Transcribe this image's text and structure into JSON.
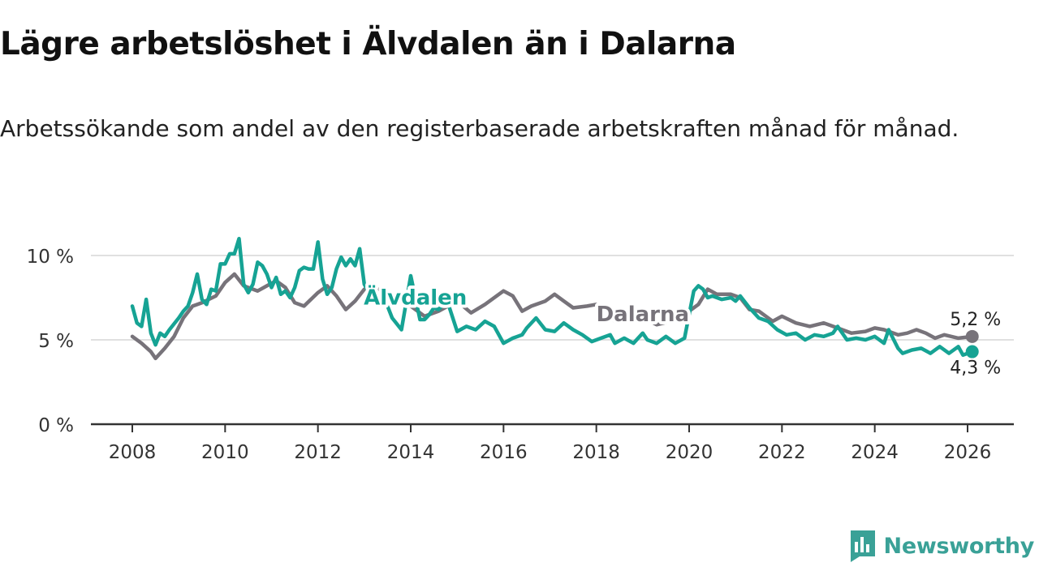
{
  "header": {
    "title": "Lägre arbetslöshet i Älvdalen än i Dalarna",
    "subtitle": "Arbetssökande som andel av den registerbaserade arbetskraften månad för månad."
  },
  "brand": {
    "name": "Newsworthy",
    "icon": "bar-chart-flag-icon",
    "color": "#3aa197"
  },
  "chart_data": {
    "type": "line",
    "title": "Lägre arbetslöshet i Älvdalen än i Dalarna",
    "xlabel": "",
    "ylabel": "",
    "xlim": [
      2007.6,
      2027.0
    ],
    "ylim": [
      0,
      10
    ],
    "x_ticks": [
      2008,
      2010,
      2012,
      2014,
      2016,
      2018,
      2020,
      2022,
      2024,
      2026
    ],
    "x_tick_labels": [
      "2008",
      "2010",
      "2012",
      "2014",
      "2016",
      "2018",
      "2020",
      "2022",
      "2024",
      "2026"
    ],
    "y_ticks": [
      0,
      5,
      10
    ],
    "y_tick_labels": [
      "0 %",
      "5 %",
      "10 %"
    ],
    "grid": "horizontal",
    "series": [
      {
        "name": "Dalarna",
        "label": "Dalarna",
        "color": "#77737a",
        "end_label": "5,2 %",
        "x": [
          2008.0,
          2008.2,
          2008.4,
          2008.5,
          2008.7,
          2008.9,
          2009.1,
          2009.3,
          2009.5,
          2009.8,
          2010.0,
          2010.2,
          2010.4,
          2010.7,
          2010.9,
          2011.1,
          2011.3,
          2011.5,
          2011.7,
          2012.0,
          2012.2,
          2012.4,
          2012.6,
          2012.8,
          2013.0,
          2013.3,
          2013.6,
          2014.0,
          2014.3,
          2014.6,
          2015.0,
          2015.3,
          2015.6,
          2016.0,
          2016.2,
          2016.4,
          2016.6,
          2016.9,
          2017.1,
          2017.3,
          2017.5,
          2017.8,
          2018.0,
          2018.2,
          2018.4,
          2018.6,
          2018.9,
          2019.1,
          2019.3,
          2019.6,
          2019.9,
          2020.2,
          2020.4,
          2020.6,
          2020.9,
          2021.1,
          2021.3,
          2021.5,
          2021.8,
          2022.0,
          2022.3,
          2022.6,
          2022.9,
          2023.2,
          2023.5,
          2023.8,
          2024.0,
          2024.2,
          2024.5,
          2024.7,
          2024.9,
          2025.1,
          2025.3,
          2025.5,
          2025.8,
          2026.1
        ],
        "y": [
          5.2,
          4.8,
          4.3,
          3.9,
          4.5,
          5.2,
          6.3,
          7.0,
          7.2,
          7.6,
          8.4,
          8.9,
          8.2,
          7.9,
          8.2,
          8.5,
          8.1,
          7.2,
          7.0,
          7.8,
          8.2,
          7.6,
          6.8,
          7.3,
          8.0,
          8.0,
          7.7,
          7.0,
          6.4,
          6.7,
          7.3,
          6.6,
          7.1,
          7.9,
          7.6,
          6.7,
          7.0,
          7.3,
          7.7,
          7.3,
          6.9,
          7.0,
          7.1,
          6.7,
          6.1,
          6.2,
          6.1,
          6.2,
          5.9,
          6.1,
          6.5,
          7.1,
          8.0,
          7.7,
          7.7,
          7.5,
          6.8,
          6.7,
          6.1,
          6.4,
          6.0,
          5.8,
          6.0,
          5.7,
          5.4,
          5.5,
          5.7,
          5.6,
          5.3,
          5.4,
          5.6,
          5.4,
          5.1,
          5.3,
          5.1,
          5.2
        ]
      },
      {
        "name": "Älvdalen",
        "label": "Älvdalen",
        "color": "#16a394",
        "end_label": "4,3 %",
        "x": [
          2008.0,
          2008.1,
          2008.2,
          2008.3,
          2008.4,
          2008.5,
          2008.6,
          2008.7,
          2008.8,
          2009.0,
          2009.1,
          2009.2,
          2009.3,
          2009.4,
          2009.5,
          2009.6,
          2009.7,
          2009.8,
          2009.9,
          2010.0,
          2010.1,
          2010.2,
          2010.3,
          2010.4,
          2010.5,
          2010.6,
          2010.7,
          2010.8,
          2010.9,
          2011.0,
          2011.1,
          2011.2,
          2011.3,
          2011.4,
          2011.5,
          2011.6,
          2011.7,
          2011.8,
          2011.9,
          2012.0,
          2012.1,
          2012.2,
          2012.3,
          2012.4,
          2012.5,
          2012.6,
          2012.7,
          2012.8,
          2012.9,
          2013.0,
          2013.1,
          2013.2,
          2013.3,
          2013.4,
          2013.6,
          2013.8,
          2014.0,
          2014.2,
          2014.3,
          2014.4,
          2014.5,
          2014.6,
          2014.7,
          2014.8,
          2015.0,
          2015.2,
          2015.4,
          2015.6,
          2015.8,
          2016.0,
          2016.2,
          2016.4,
          2016.5,
          2016.7,
          2016.9,
          2017.1,
          2017.3,
          2017.5,
          2017.7,
          2017.9,
          2018.1,
          2018.3,
          2018.4,
          2018.6,
          2018.8,
          2019.0,
          2019.1,
          2019.3,
          2019.5,
          2019.7,
          2019.9,
          2020.1,
          2020.2,
          2020.3,
          2020.4,
          2020.5,
          2020.7,
          2020.9,
          2021.0,
          2021.1,
          2021.3,
          2021.5,
          2021.7,
          2021.9,
          2022.1,
          2022.3,
          2022.5,
          2022.7,
          2022.9,
          2023.1,
          2023.2,
          2023.4,
          2023.6,
          2023.8,
          2024.0,
          2024.2,
          2024.3,
          2024.5,
          2024.6,
          2024.8,
          2025.0,
          2025.2,
          2025.4,
          2025.6,
          2025.8,
          2025.9,
          2026.1
        ],
        "y": [
          7.0,
          6.0,
          5.8,
          7.4,
          5.4,
          4.7,
          5.4,
          5.2,
          5.6,
          6.3,
          6.7,
          7.0,
          7.8,
          8.9,
          7.4,
          7.1,
          8.0,
          7.9,
          9.5,
          9.5,
          10.1,
          10.1,
          11.0,
          8.3,
          7.8,
          8.3,
          9.6,
          9.4,
          8.9,
          8.1,
          8.7,
          7.7,
          7.9,
          7.5,
          8.1,
          9.1,
          9.3,
          9.2,
          9.2,
          10.8,
          8.6,
          7.7,
          8.1,
          9.2,
          9.9,
          9.4,
          9.8,
          9.4,
          10.4,
          8.3,
          7.8,
          8.1,
          7.4,
          7.7,
          6.3,
          5.6,
          8.8,
          6.2,
          6.2,
          6.5,
          6.9,
          6.8,
          7.1,
          7.2,
          5.5,
          5.8,
          5.6,
          6.1,
          5.8,
          4.8,
          5.1,
          5.3,
          5.7,
          6.3,
          5.6,
          5.5,
          6.0,
          5.6,
          5.3,
          4.9,
          5.1,
          5.3,
          4.8,
          5.1,
          4.8,
          5.4,
          5.0,
          4.8,
          5.2,
          4.8,
          5.1,
          7.9,
          8.2,
          8.0,
          7.5,
          7.6,
          7.4,
          7.5,
          7.3,
          7.6,
          6.9,
          6.3,
          6.1,
          5.6,
          5.3,
          5.4,
          5.0,
          5.3,
          5.2,
          5.4,
          5.8,
          5.0,
          5.1,
          5.0,
          5.2,
          4.8,
          5.6,
          4.5,
          4.2,
          4.4,
          4.5,
          4.2,
          4.6,
          4.2,
          4.6,
          4.1,
          4.3
        ]
      }
    ]
  }
}
